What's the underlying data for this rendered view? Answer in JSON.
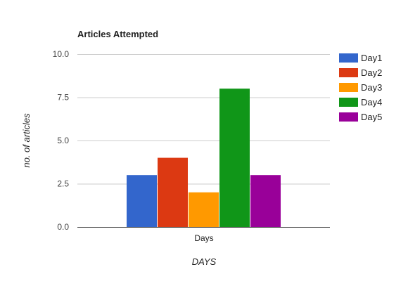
{
  "chart_data": {
    "type": "bar",
    "title": "Articles Attempted",
    "categories": [
      "Days"
    ],
    "series": [
      {
        "name": "Day1",
        "values": [
          3
        ],
        "color": "#3366cc"
      },
      {
        "name": "Day2",
        "values": [
          4
        ],
        "color": "#dc3912"
      },
      {
        "name": "Day3",
        "values": [
          2
        ],
        "color": "#ff9900"
      },
      {
        "name": "Day4",
        "values": [
          8
        ],
        "color": "#109618"
      },
      {
        "name": "Day5",
        "values": [
          3
        ],
        "color": "#990099"
      }
    ],
    "xlabel": "DAYS",
    "ylabel": "no. of articles",
    "ylim": [
      0,
      10
    ],
    "yticks": [
      "0.0",
      "2.5",
      "5.0",
      "7.5",
      "10.0"
    ],
    "grid": true,
    "legend": "right"
  }
}
